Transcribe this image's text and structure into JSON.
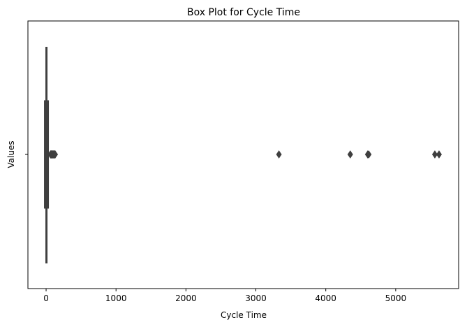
{
  "chart_data": {
    "type": "box",
    "title": "Box Plot for Cycle Time",
    "xlabel": "Cycle Time",
    "ylabel": "Values",
    "xlim": [
      -260,
      5900
    ],
    "xticks": [
      0,
      1000,
      2000,
      3000,
      4000,
      5000
    ],
    "xtick_labels": [
      "0",
      "1000",
      "2000",
      "3000",
      "4000",
      "5000"
    ],
    "ytick_labels": [
      ""
    ],
    "grid": false,
    "box": {
      "whisker_low": 0,
      "q1": 2,
      "median": 5,
      "q3": 30,
      "whisker_high": 60
    },
    "outliers": [
      62,
      66,
      70,
      74,
      78,
      82,
      86,
      90,
      95,
      100,
      105,
      110,
      115,
      120,
      125,
      130,
      3330,
      4350,
      4600,
      4615,
      5560,
      5620
    ],
    "colors": {
      "box": "#3f3f3f",
      "frame": "#000000"
    }
  }
}
